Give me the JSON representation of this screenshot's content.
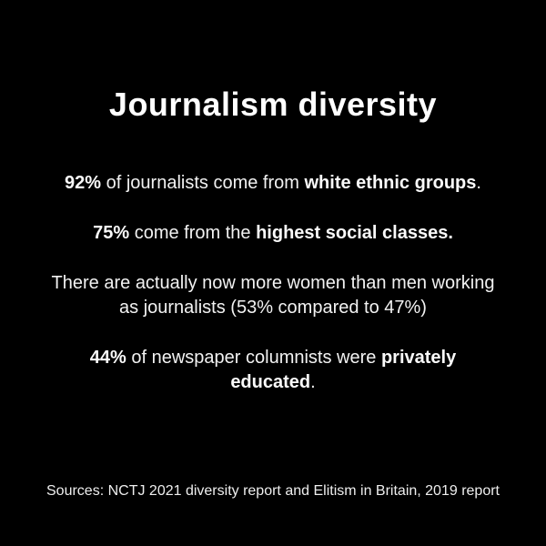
{
  "page": {
    "background_color": "#000000",
    "title_color": "#ffffff",
    "body_text_color": "#f2f2f2"
  },
  "title": "Journalism diversity",
  "facts": [
    {
      "segments": [
        {
          "text": "92%",
          "bold": true
        },
        {
          "text": " of journalists come from ",
          "bold": false
        },
        {
          "text": "white ethnic groups",
          "bold": true
        },
        {
          "text": ".",
          "bold": false
        }
      ]
    },
    {
      "segments": [
        {
          "text": "75%",
          "bold": true
        },
        {
          "text": " come from the ",
          "bold": false
        },
        {
          "text": "highest social classes.",
          "bold": true
        }
      ]
    },
    {
      "segments": [
        {
          "text": "There are actually now more women than men working",
          "bold": false,
          "br": true
        },
        {
          "text": "as journalists (53% compared to 47%)",
          "bold": false
        }
      ]
    },
    {
      "segments": [
        {
          "text": "44%",
          "bold": true
        },
        {
          "text": " of newspaper columnists were ",
          "bold": false
        },
        {
          "text": "privately",
          "bold": true,
          "br": true
        },
        {
          "text": "educated",
          "bold": true
        },
        {
          "text": ".",
          "bold": false
        }
      ]
    }
  ],
  "source": "Sources: NCTJ 2021 diversity report and Elitism in Britain, 2019 report"
}
